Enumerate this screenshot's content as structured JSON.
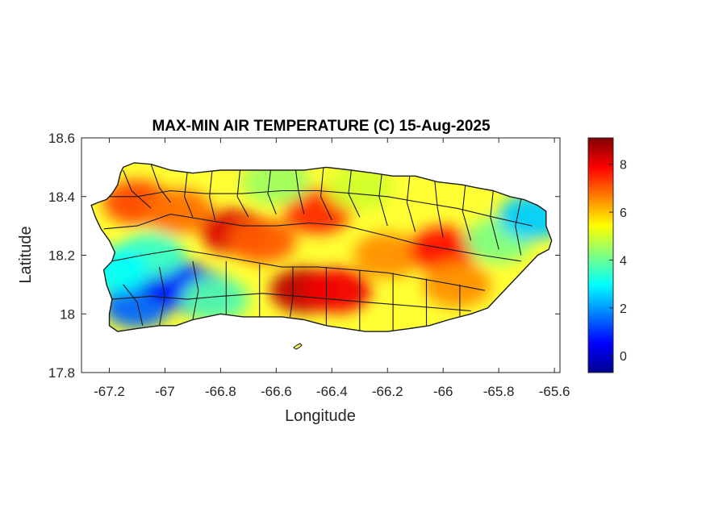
{
  "chart_data": {
    "type": "heatmap",
    "title": "MAX-MIN AIR TEMPERATURE (C) 15-Aug-2025",
    "xlabel": "Longitude",
    "ylabel": "Latitude",
    "xlim": [
      -67.3,
      -65.58
    ],
    "ylim": [
      17.8,
      18.6
    ],
    "xticks": [
      -67.2,
      -67,
      -66.8,
      -66.6,
      -66.4,
      -66.2,
      -66,
      -65.8,
      -65.6
    ],
    "xtick_labels": [
      "-67.2",
      "-67",
      "-66.8",
      "-66.6",
      "-66.4",
      "-66.2",
      "-66",
      "-65.8",
      "-65.6"
    ],
    "yticks": [
      17.8,
      18,
      18.2,
      18.4,
      18.6
    ],
    "ytick_labels": [
      "17.8",
      "18",
      "18.2",
      "18.4",
      "18.6"
    ],
    "colorbar": {
      "colormap": "jet",
      "range": [
        -0.7,
        9.1
      ],
      "ticks": [
        0,
        2,
        4,
        6,
        8
      ],
      "tick_labels": [
        "0",
        "2",
        "4",
        "6",
        "8"
      ],
      "placement": "right"
    },
    "grid": false,
    "region_estimates": [
      {
        "lon": -67.1,
        "lat": 18.03,
        "value": 1.5
      },
      {
        "lon": -66.95,
        "lat": 18.1,
        "value": 0.5
      },
      {
        "lon": -66.87,
        "lat": 18.07,
        "value": 0.8
      },
      {
        "lon": -67.05,
        "lat": 18.2,
        "value": 3.5
      },
      {
        "lon": -67.1,
        "lat": 18.38,
        "value": 7.2
      },
      {
        "lon": -66.95,
        "lat": 18.35,
        "value": 6.8
      },
      {
        "lon": -66.75,
        "lat": 18.28,
        "value": 8.2
      },
      {
        "lon": -66.65,
        "lat": 18.25,
        "value": 7.0
      },
      {
        "lon": -66.5,
        "lat": 18.08,
        "value": 8.5
      },
      {
        "lon": -66.38,
        "lat": 18.08,
        "value": 8.0
      },
      {
        "lon": -66.45,
        "lat": 18.35,
        "value": 7.5
      },
      {
        "lon": -66.2,
        "lat": 18.2,
        "value": 6.5
      },
      {
        "lon": -66.0,
        "lat": 18.22,
        "value": 7.8
      },
      {
        "lon": -65.95,
        "lat": 18.1,
        "value": 6.5
      },
      {
        "lon": -65.8,
        "lat": 18.25,
        "value": 4.2
      },
      {
        "lon": -65.68,
        "lat": 18.33,
        "value": 2.5
      },
      {
        "lon": -66.6,
        "lat": 18.45,
        "value": 4.5
      },
      {
        "lon": -66.3,
        "lat": 18.43,
        "value": 5.0
      },
      {
        "lon": -66.82,
        "lat": 18.05,
        "value": 3.8
      },
      {
        "lon": -67.18,
        "lat": 18.15,
        "value": 3.0
      }
    ]
  }
}
